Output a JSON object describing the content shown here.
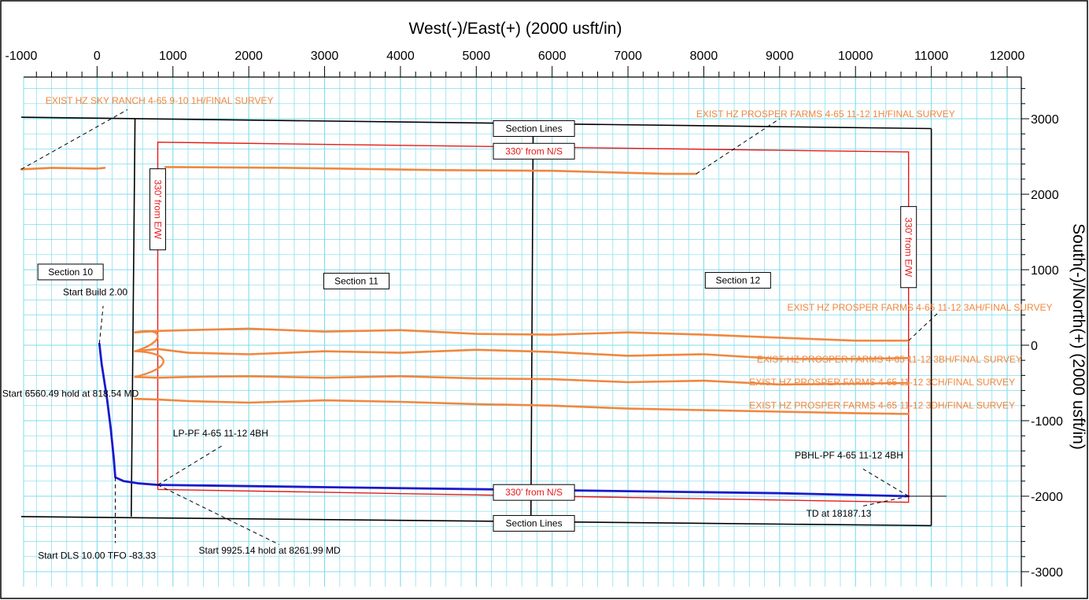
{
  "chart_data": {
    "type": "line",
    "title": "",
    "xlabel": "West(-)/East(+) (2000 usft/in)",
    "ylabel": "South(-)/North(+) (2000 usft/in)",
    "xlim": [
      -1000,
      12000
    ],
    "ylim": [
      -3000,
      3000
    ],
    "x_ticks": [
      -1000,
      0,
      1000,
      2000,
      3000,
      4000,
      5000,
      6000,
      7000,
      8000,
      9000,
      10000,
      11000,
      12000
    ],
    "y_ticks": [
      3000,
      2000,
      1000,
      0,
      -1000,
      -2000,
      -3000
    ],
    "x_tick_labels": [
      "-1000",
      "0",
      "1000",
      "2000",
      "3000",
      "4000",
      "5000",
      "6000",
      "7000",
      "8000",
      "9000",
      "10000",
      "11000",
      "12000"
    ],
    "y_tick_labels": [
      "3000",
      "2000",
      "1000",
      "0",
      "-1000",
      "-2000",
      "-3000"
    ],
    "grid": true,
    "colors": {
      "grid": "#7fdcec",
      "section": "#000000",
      "setback": "#e81a1a",
      "survey": "#f0873f",
      "plan": "#1a1acc"
    },
    "section_lines": [
      {
        "name": "north-boundary",
        "points": [
          [
            -1000,
            3020
          ],
          [
            11000,
            2870
          ]
        ]
      },
      {
        "name": "south-boundary",
        "points": [
          [
            -1000,
            -2270
          ],
          [
            11000,
            -2390
          ]
        ]
      },
      {
        "name": "west-line",
        "points": [
          [
            500,
            3000
          ],
          [
            450,
            -2270
          ]
        ]
      },
      {
        "name": "east-line",
        "points": [
          [
            11000,
            2870
          ],
          [
            11000,
            -2390
          ]
        ]
      },
      {
        "name": "middle-line",
        "points": [
          [
            5750,
            2950
          ],
          [
            5720,
            -2330
          ]
        ]
      }
    ],
    "setback_lines": [
      {
        "name": "setback-box",
        "points": [
          [
            800,
            -1910
          ],
          [
            800,
            2690
          ],
          [
            10700,
            2560
          ],
          [
            10700,
            -2080
          ],
          [
            800,
            -1910
          ]
        ]
      }
    ],
    "series": [
      {
        "name": "EXIST HZ SKY RANCH 4-65 9-10 1H/FINAL SURVEY",
        "points": [
          [
            -1000,
            2330
          ],
          [
            -600,
            2350
          ],
          [
            0,
            2340
          ],
          [
            100,
            2350
          ]
        ]
      },
      {
        "name": "EXIST HZ PROSPER FARMS 4-65 11-12 1H/FINAL SURVEY",
        "points": [
          [
            900,
            2360
          ],
          [
            2500,
            2350
          ],
          [
            4500,
            2320
          ],
          [
            6000,
            2310
          ],
          [
            7500,
            2270
          ],
          [
            7900,
            2270
          ]
        ]
      },
      {
        "name": "EXIST HZ PROSPER FARMS 4-65 11-12 3AH/FINAL SURVEY",
        "points": [
          [
            500,
            170
          ],
          [
            800,
            190
          ],
          [
            1200,
            200
          ],
          [
            2000,
            220
          ],
          [
            3000,
            180
          ],
          [
            4000,
            200
          ],
          [
            5000,
            150
          ],
          [
            6000,
            140
          ],
          [
            7000,
            170
          ],
          [
            8000,
            140
          ],
          [
            9000,
            100
          ],
          [
            10000,
            60
          ],
          [
            10700,
            60
          ]
        ]
      },
      {
        "name": "EXIST HZ PROSPER FARMS 4-65 11-12 3BH/FINAL SURVEY",
        "points": [
          [
            500,
            -80
          ],
          [
            800,
            -50
          ],
          [
            1200,
            -100
          ],
          [
            2000,
            -120
          ],
          [
            3000,
            -80
          ],
          [
            4000,
            -100
          ],
          [
            5000,
            -60
          ],
          [
            6000,
            -90
          ],
          [
            7000,
            -140
          ],
          [
            8000,
            -120
          ],
          [
            9000,
            -180
          ],
          [
            10000,
            -180
          ],
          [
            10700,
            -170
          ]
        ]
      },
      {
        "name": "EXIST HZ PROSPER FARMS 4-65 11-12 3CH/FINAL SURVEY",
        "points": [
          [
            500,
            -420
          ],
          [
            800,
            -430
          ],
          [
            1200,
            -420
          ],
          [
            2000,
            -410
          ],
          [
            3000,
            -430
          ],
          [
            4000,
            -410
          ],
          [
            5000,
            -440
          ],
          [
            6000,
            -450
          ],
          [
            7000,
            -490
          ],
          [
            8000,
            -470
          ],
          [
            9000,
            -520
          ],
          [
            10000,
            -510
          ],
          [
            10700,
            -500
          ]
        ]
      },
      {
        "name": "EXIST HZ PROSPER FARMS 4-65 11-12 3DH/FINAL SURVEY",
        "points": [
          [
            500,
            -710
          ],
          [
            800,
            -720
          ],
          [
            1200,
            -740
          ],
          [
            2000,
            -760
          ],
          [
            3000,
            -730
          ],
          [
            4000,
            -750
          ],
          [
            5000,
            -780
          ],
          [
            6000,
            -800
          ],
          [
            7000,
            -840
          ],
          [
            8000,
            -860
          ],
          [
            9000,
            -880
          ],
          [
            10000,
            -900
          ],
          [
            10700,
            -910
          ]
        ]
      },
      {
        "name": "PF 4-65 11-12 4BH",
        "points": [
          [
            30,
            20
          ],
          [
            60,
            -250
          ],
          [
            130,
            -700
          ],
          [
            180,
            -1100
          ],
          [
            220,
            -1500
          ],
          [
            240,
            -1750
          ],
          [
            350,
            -1800
          ],
          [
            550,
            -1830
          ],
          [
            800,
            -1850
          ],
          [
            3000,
            -1880
          ],
          [
            6000,
            -1920
          ],
          [
            9000,
            -1960
          ],
          [
            10700,
            -2000
          ]
        ]
      }
    ],
    "section_labels": [
      {
        "text": "Section 10",
        "x": -350,
        "y": 970
      },
      {
        "text": "Section 11",
        "x": 3420,
        "y": 850
      },
      {
        "text": "Section 12",
        "x": 8450,
        "y": 860
      },
      {
        "text": "Section Lines",
        "x": 5760,
        "y": 2870
      },
      {
        "text": "Section Lines",
        "x": 5760,
        "y": -2360
      }
    ],
    "setback_labels": [
      {
        "text": "330' from N/S",
        "x": 5760,
        "y": 2570,
        "rotate": false
      },
      {
        "text": "330' from N/S",
        "x": 5760,
        "y": -1950,
        "rotate": false
      },
      {
        "text": "330' from E/W",
        "x": 800,
        "y": 1800,
        "rotate": true
      },
      {
        "text": "330' from E/W",
        "x": 10700,
        "y": 1300,
        "rotate": true
      }
    ],
    "annotations": [
      {
        "text": "EXIST HZ SKY RANCH 4-65 9-10 1H/FINAL SURVEY",
        "color": "survey",
        "tx": -680,
        "ty": 3200,
        "lx1": -1000,
        "ly1": 2330,
        "lx2": 400,
        "ly2": 3120
      },
      {
        "text": "EXIST HZ PROSPER FARMS 4-65 11-12 1H/FINAL SURVEY",
        "color": "survey",
        "tx": 7900,
        "ty": 3020,
        "lx1": 7900,
        "ly1": 2270,
        "lx2": 9000,
        "ly2": 3000
      },
      {
        "text": "EXIST HZ PROSPER FARMS 4-65 11-12 3AH/FINAL SURVEY",
        "color": "survey",
        "tx": 9100,
        "ty": 460,
        "lx1": 10700,
        "ly1": 60,
        "lx2": 11100,
        "ly2": 440
      },
      {
        "text": "EXIST HZ PROSPER FARMS 4-65 11-12 3BH/FINAL SURVEY",
        "color": "survey",
        "tx": 8700,
        "ty": -230,
        "lx1": 0,
        "ly1": 0,
        "lx2": 0,
        "ly2": 0
      },
      {
        "text": "EXIST HZ PROSPER FARMS 4-65 11-12 3CH/FINAL SURVEY",
        "color": "survey",
        "tx": 8600,
        "ty": -530,
        "lx1": 0,
        "ly1": 0,
        "lx2": 0,
        "ly2": 0
      },
      {
        "text": "EXIST HZ PROSPER FARMS 4-65 11-12 3DH/FINAL SURVEY",
        "color": "survey",
        "tx": 8600,
        "ty": -840,
        "lx1": 0,
        "ly1": 0,
        "lx2": 0,
        "ly2": 0
      },
      {
        "text": "Start Build 2.00",
        "color": "black",
        "tx": -450,
        "ty": 660,
        "lx1": 30,
        "ly1": 20,
        "lx2": 80,
        "ly2": 520
      },
      {
        "text": "Start 6560.49 hold at 818.54 MD",
        "color": "black",
        "tx": -1250,
        "ty": -680,
        "lx1": 0,
        "ly1": 0,
        "lx2": 0,
        "ly2": 0
      },
      {
        "text": "LP-PF 4-65 11-12 4BH",
        "color": "black",
        "tx": 1000,
        "ty": -1210,
        "lx1": 800,
        "ly1": -1850,
        "lx2": 1650,
        "ly2": -1330
      },
      {
        "text": "Start DLS 10.00 TFO -83.33",
        "color": "black",
        "tx": -780,
        "ty": -2830,
        "lx1": 240,
        "ly1": -1750,
        "lx2": 240,
        "ly2": -2620
      },
      {
        "text": "Start 9925.14 hold at 8261.99 MD",
        "color": "black",
        "tx": 1340,
        "ty": -2760,
        "lx1": 800,
        "ly1": -1850,
        "lx2": 2400,
        "ly2": -2640
      },
      {
        "text": "PBHL-PF 4-65 11-12 4BH",
        "color": "black",
        "tx": 9200,
        "ty": -1500,
        "lx1": 10700,
        "ly1": -2000,
        "lx2": 10100,
        "ly2": -1640
      },
      {
        "text": "TD at 18187.13",
        "color": "black",
        "tx": 9350,
        "ty": -2270,
        "lx1": 10700,
        "ly1": -2000,
        "lx2": 10100,
        "ly2": -2130
      }
    ]
  }
}
